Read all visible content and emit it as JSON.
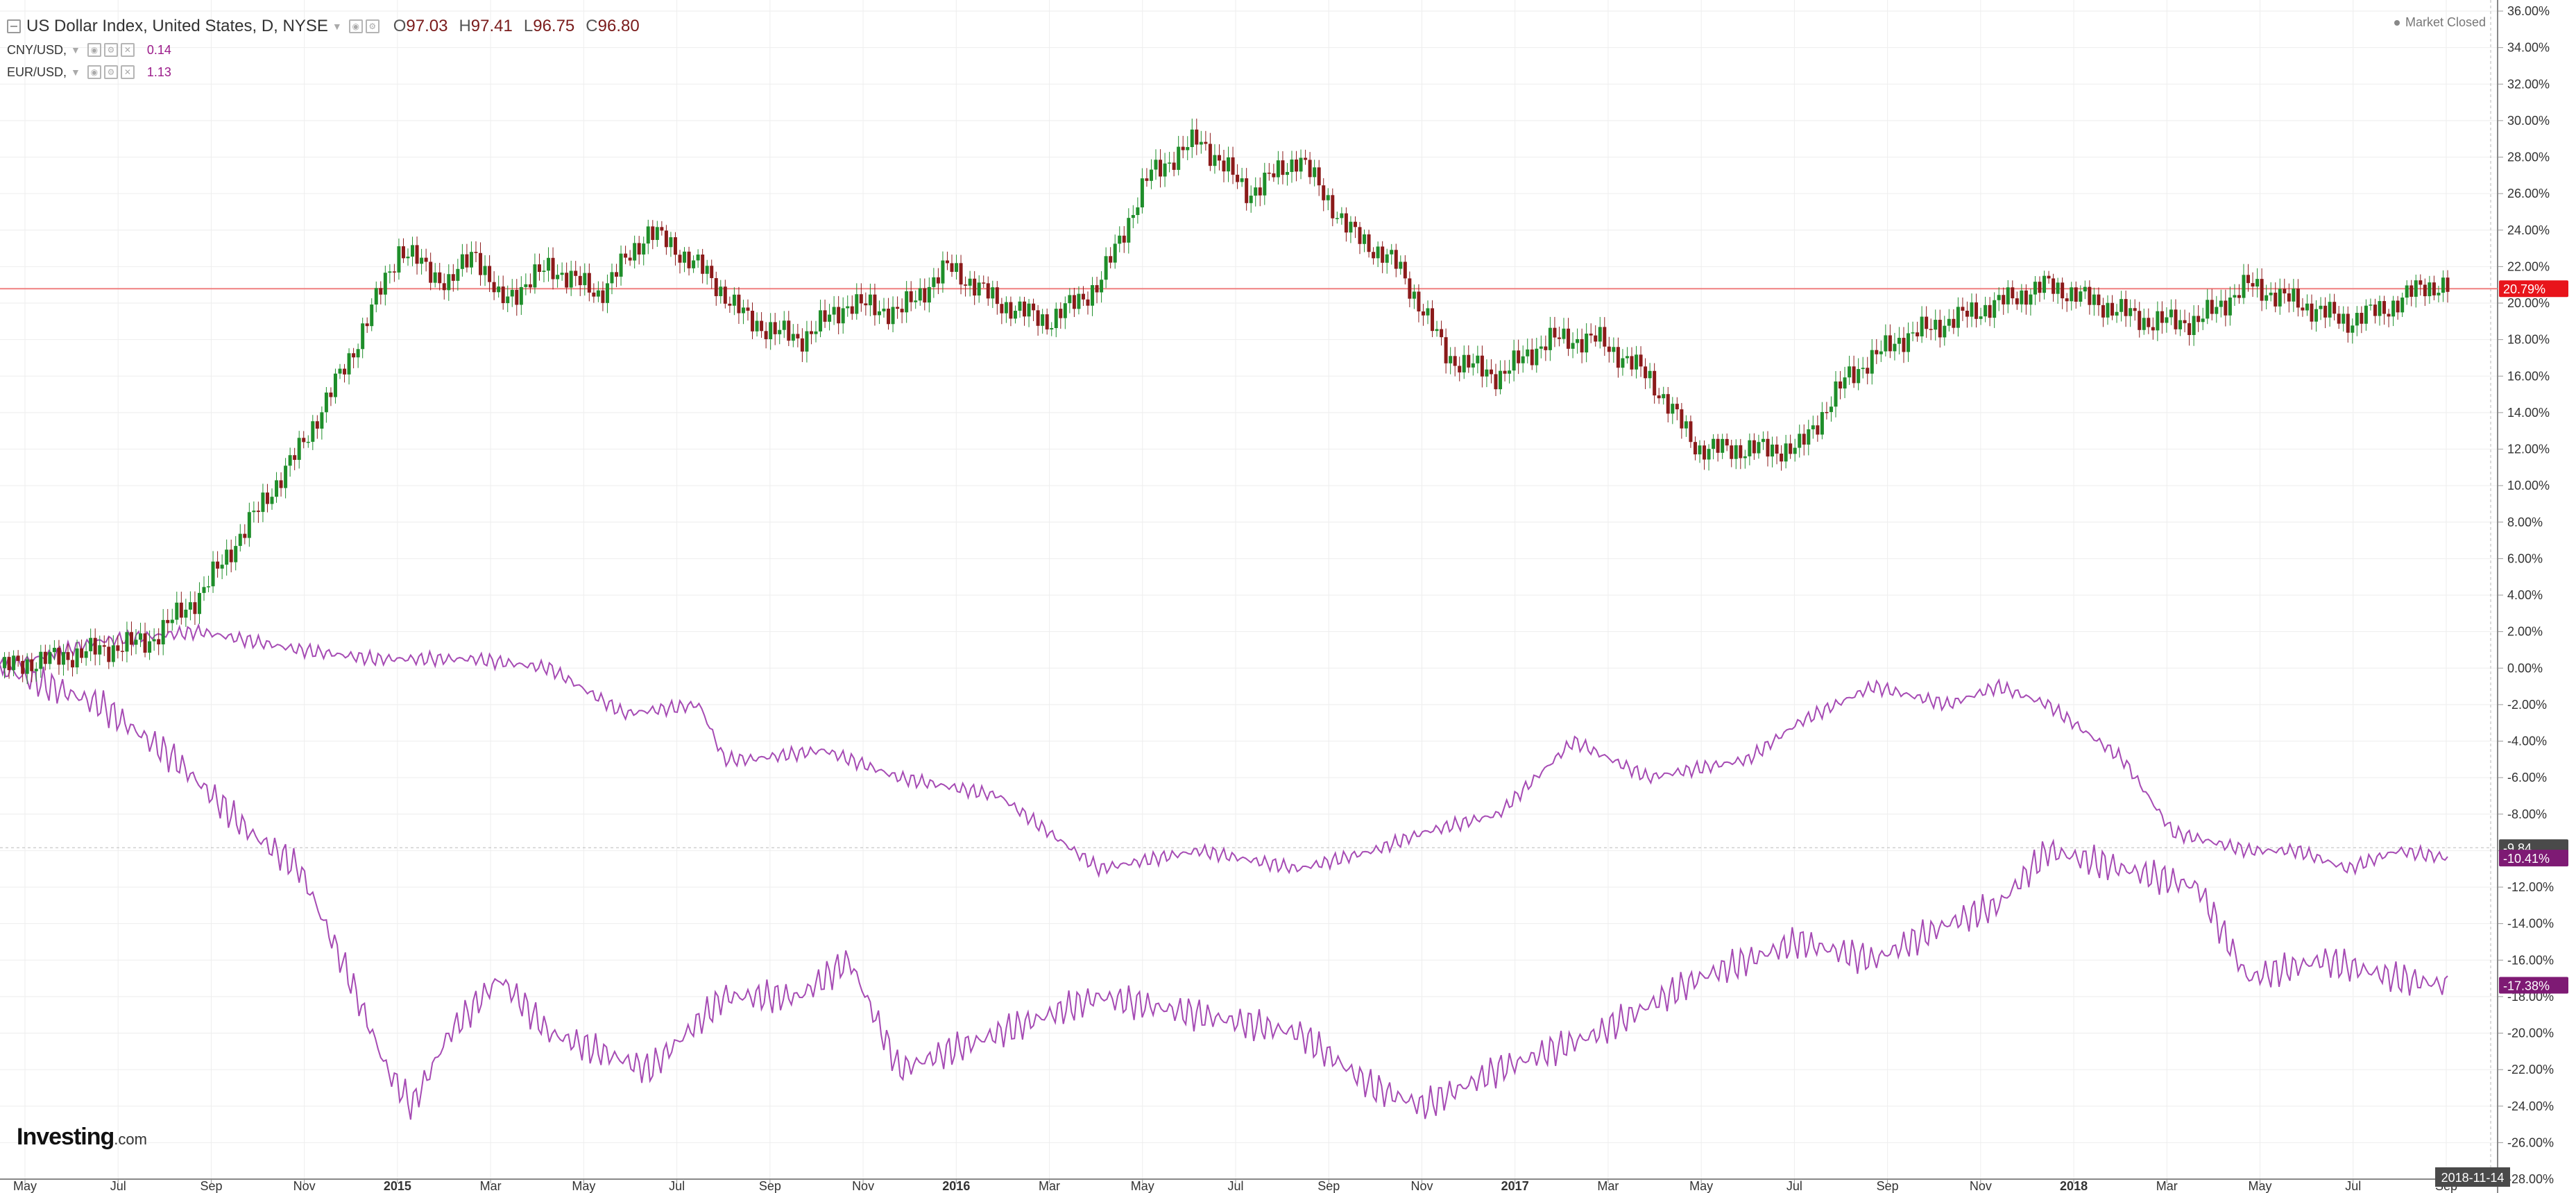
{
  "header": {
    "title": "US Dollar Index, United States, D, NYSE",
    "ohlc": [
      {
        "label": "O",
        "value": "97.03"
      },
      {
        "label": "H",
        "value": "97.41"
      },
      {
        "label": "L",
        "value": "96.75"
      },
      {
        "label": "C",
        "value": "96.80"
      }
    ],
    "overlays": [
      {
        "name": "CNY/USD,",
        "value": "0.14"
      },
      {
        "name": "EUR/USD,",
        "value": "1.13"
      }
    ],
    "status": "Market Closed"
  },
  "brand": {
    "name": "Investing",
    "suffix": ".com"
  },
  "colors": {
    "up": "#1e8e2a",
    "down": "#8b1a1a",
    "overlay": "#a64bb4",
    "price_line": "#f08080",
    "tag_red": "#e8141b",
    "tag_purple": "#7e1a74",
    "tag_dark": "#4a4a4a",
    "grid": "#eeeeee"
  },
  "chart_data": {
    "type": "line",
    "ylim": [
      -28,
      36
    ],
    "y_ticks": [
      "36.00%",
      "34.00%",
      "32.00%",
      "30.00%",
      "28.00%",
      "26.00%",
      "24.00%",
      "22.00%",
      "20.00%",
      "18.00%",
      "16.00%",
      "14.00%",
      "12.00%",
      "10.00%",
      "8.00%",
      "6.00%",
      "4.00%",
      "2.00%",
      "0.00%",
      "-2.00%",
      "-4.00%",
      "-6.00%",
      "-8.00%",
      "-10.00%",
      "-12.00%",
      "-14.00%",
      "-16.00%",
      "-18.00%",
      "-20.00%",
      "-22.00%",
      "-24.00%",
      "-26.00%",
      "-28.00%"
    ],
    "x_ticks": [
      "May",
      "Jul",
      "Sep",
      "Nov",
      "2015",
      "Mar",
      "May",
      "Jul",
      "Sep",
      "Nov",
      "2016",
      "Mar",
      "May",
      "Jul",
      "Sep",
      "Nov",
      "2017",
      "Mar",
      "May",
      "Jul",
      "Sep",
      "Nov",
      "2018",
      "Mar",
      "May",
      "Jul",
      "Sep"
    ],
    "x_ticks_bold": [
      "2015",
      "2016",
      "2017",
      "2018"
    ],
    "date_tag": "2018-11-14",
    "series": [
      {
        "name": "US Dollar Index",
        "style": "candlestick",
        "x": [
          0,
          0.02,
          0.04,
          0.06,
          0.08,
          0.1,
          0.12,
          0.14,
          0.16,
          0.18,
          0.19,
          0.2,
          0.21,
          0.22,
          0.24,
          0.26,
          0.28,
          0.3,
          0.32,
          0.34,
          0.36,
          0.38,
          0.4,
          0.42,
          0.44,
          0.46,
          0.48,
          0.5,
          0.52,
          0.54,
          0.56,
          0.58,
          0.6,
          0.62,
          0.64,
          0.66,
          0.68,
          0.7,
          0.72,
          0.74,
          0.76,
          0.78,
          0.8,
          0.82,
          0.84,
          0.86,
          0.88,
          0.9,
          0.92,
          0.94,
          0.96,
          0.97,
          0.98
        ],
        "y": [
          0,
          0.5,
          1.0,
          1.5,
          4,
          8,
          12,
          17,
          23,
          21,
          23,
          20,
          21,
          22,
          20.5,
          24,
          22,
          19,
          18,
          20,
          19.5,
          22,
          20,
          19,
          21,
          27,
          29,
          26,
          28,
          24,
          22,
          17,
          16,
          18,
          18,
          16,
          12,
          12,
          12,
          16,
          18,
          19,
          20,
          21,
          20,
          19,
          19,
          21,
          20,
          19,
          20,
          21,
          20.8
        ]
      },
      {
        "name": "CNY/USD",
        "style": "line",
        "x": [
          0,
          0.04,
          0.08,
          0.12,
          0.15,
          0.19,
          0.22,
          0.25,
          0.28,
          0.29,
          0.3,
          0.33,
          0.36,
          0.4,
          0.42,
          0.44,
          0.48,
          0.52,
          0.55,
          0.57,
          0.6,
          0.63,
          0.66,
          0.7,
          0.72,
          0.75,
          0.78,
          0.8,
          0.82,
          0.85,
          0.87,
          0.9,
          0.92,
          0.94,
          0.96,
          0.98
        ],
        "y": [
          0,
          1.5,
          2,
          1,
          0.5,
          0.5,
          0,
          -2.5,
          -2,
          -5,
          -5,
          -4.5,
          -6,
          -7,
          -9,
          -11,
          -10,
          -11,
          -10,
          -9,
          -8,
          -4,
          -6,
          -5,
          -3,
          -1,
          -2,
          -1,
          -2,
          -5,
          -9,
          -10,
          -10,
          -11,
          -10,
          -10.4
        ]
      },
      {
        "name": "EUR/USD",
        "style": "line",
        "x": [
          0,
          0.04,
          0.07,
          0.1,
          0.12,
          0.14,
          0.155,
          0.165,
          0.18,
          0.2,
          0.22,
          0.26,
          0.29,
          0.32,
          0.34,
          0.36,
          0.4,
          0.44,
          0.48,
          0.52,
          0.55,
          0.57,
          0.6,
          0.64,
          0.68,
          0.72,
          0.75,
          0.78,
          0.8,
          0.82,
          0.85,
          0.88,
          0.9,
          0.93,
          0.96,
          0.98
        ],
        "y": [
          0,
          -2,
          -5,
          -9,
          -11,
          -17,
          -22,
          -24,
          -20,
          -17,
          -20,
          -22,
          -18,
          -18,
          -16,
          -22,
          -20,
          -18,
          -19,
          -20,
          -23,
          -24,
          -22,
          -20,
          -17,
          -15,
          -16,
          -14,
          -13,
          -10,
          -11,
          -12,
          -17,
          -16,
          -17,
          -17.4
        ]
      }
    ],
    "price_tags": [
      {
        "text": "20.79%",
        "value": 20.79,
        "color_key": "tag_red"
      },
      {
        "text": "-9.84",
        "value": -9.84,
        "color_key": "tag_dark"
      },
      {
        "text": "-10.41%",
        "value": -10.41,
        "color_key": "tag_purple"
      },
      {
        "text": "-17.38%",
        "value": -17.38,
        "color_key": "tag_purple"
      }
    ],
    "crosshair_value": -9.84,
    "price_line_value": 20.79
  }
}
